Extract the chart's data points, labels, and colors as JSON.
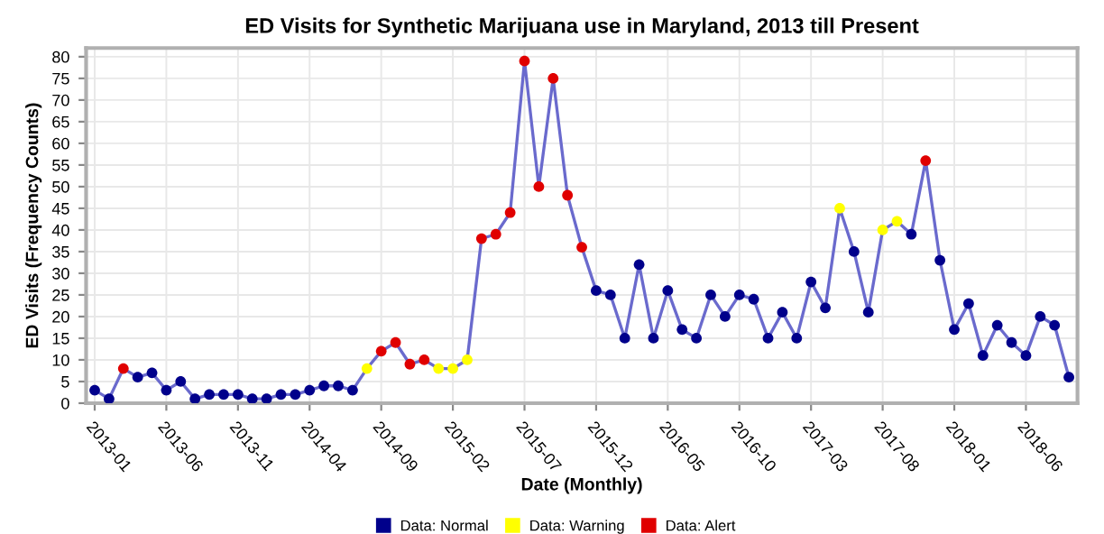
{
  "chart_data": {
    "type": "line",
    "title": "ED Visits for Synthetic Marijuana use in Maryland, 2013 till Present",
    "xlabel": "Date (Monthly)",
    "ylabel": "ED Visits (Frequency Counts)",
    "categories": [
      "2013-01",
      null,
      null,
      null,
      null,
      "2013-06",
      null,
      null,
      null,
      null,
      "2013-11",
      null,
      null,
      null,
      null,
      "2014-04",
      null,
      null,
      null,
      null,
      "2014-09",
      null,
      null,
      null,
      null,
      "2015-02",
      null,
      null,
      null,
      null,
      "2015-07",
      null,
      null,
      null,
      null,
      "2015-12",
      null,
      null,
      null,
      null,
      "2016-05",
      null,
      null,
      null,
      null,
      "2016-10",
      null,
      null,
      null,
      null,
      "2017-03",
      null,
      null,
      null,
      null,
      "2017-08",
      null,
      null,
      null,
      null,
      "2018-01",
      null,
      null,
      null,
      null,
      "2018-06",
      null,
      null,
      null
    ],
    "series": [
      {
        "color": "#6a6acd",
        "marker": "none",
        "values": [
          3,
          1,
          8,
          6,
          7,
          3,
          5,
          1,
          2,
          2,
          2,
          1,
          1,
          2,
          2,
          3,
          4,
          4,
          3,
          8,
          12,
          14,
          9,
          10,
          8,
          8,
          10,
          38,
          39,
          44,
          79,
          50,
          75,
          48,
          36,
          26,
          25,
          15,
          32,
          15,
          26,
          17,
          15,
          25,
          20,
          25,
          24,
          15,
          21,
          15,
          28,
          22,
          45,
          35,
          21,
          40,
          42,
          39,
          56,
          33,
          17,
          23,
          11,
          18,
          14,
          11,
          20,
          18,
          6
        ]
      },
      {
        "type": "scatter",
        "name": "Data: Normal",
        "color": "#00008b",
        "marker": "circle",
        "values": [
          3,
          1,
          null,
          6,
          7,
          3,
          5,
          1,
          2,
          2,
          2,
          1,
          1,
          2,
          2,
          3,
          4,
          4,
          3,
          null,
          null,
          null,
          null,
          null,
          null,
          null,
          null,
          null,
          null,
          null,
          null,
          null,
          null,
          null,
          null,
          26,
          25,
          15,
          32,
          15,
          26,
          17,
          15,
          25,
          20,
          25,
          24,
          15,
          21,
          15,
          28,
          22,
          null,
          35,
          21,
          null,
          null,
          39,
          null,
          33,
          17,
          23,
          11,
          18,
          14,
          11,
          20,
          18,
          6
        ]
      },
      {
        "type": "scatter",
        "name": "Data: Warning",
        "color": "#ffff00",
        "marker": "circle",
        "values": [
          null,
          null,
          null,
          null,
          null,
          null,
          null,
          null,
          null,
          null,
          null,
          null,
          null,
          null,
          null,
          null,
          null,
          null,
          null,
          8,
          null,
          null,
          null,
          null,
          8,
          8,
          10,
          null,
          null,
          null,
          null,
          null,
          null,
          null,
          null,
          null,
          null,
          null,
          null,
          null,
          null,
          null,
          null,
          null,
          null,
          null,
          null,
          null,
          null,
          null,
          null,
          null,
          45,
          null,
          null,
          40,
          42,
          null,
          null,
          null,
          null,
          null,
          null,
          null,
          null,
          null,
          null,
          null,
          null
        ]
      },
      {
        "type": "scatter",
        "name": "Data: Alert",
        "color": "#e00000",
        "marker": "circle",
        "values": [
          null,
          null,
          8,
          null,
          null,
          null,
          null,
          null,
          null,
          null,
          null,
          null,
          null,
          null,
          null,
          null,
          null,
          null,
          null,
          null,
          12,
          14,
          9,
          10,
          null,
          null,
          null,
          38,
          39,
          44,
          79,
          50,
          75,
          48,
          36,
          null,
          null,
          null,
          null,
          null,
          null,
          null,
          null,
          null,
          null,
          null,
          null,
          null,
          null,
          null,
          null,
          null,
          null,
          null,
          null,
          null,
          null,
          null,
          56,
          null,
          null,
          null,
          null,
          null,
          null,
          null,
          null,
          null,
          null
        ]
      }
    ],
    "ylim": [
      0,
      82
    ],
    "yticks": [
      0,
      5,
      10,
      15,
      20,
      25,
      30,
      35,
      40,
      45,
      50,
      55,
      60,
      65,
      70,
      75,
      80
    ],
    "grid": true,
    "legend": "bottom"
  }
}
